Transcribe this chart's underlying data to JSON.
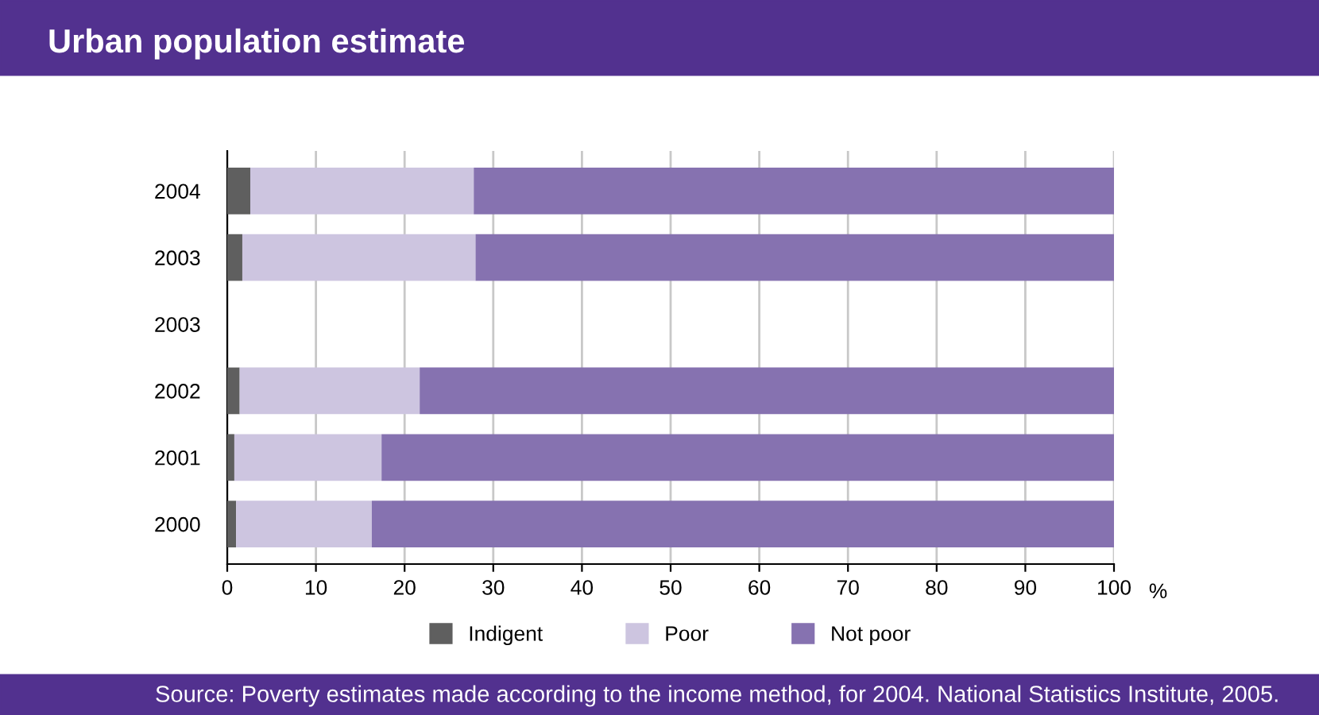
{
  "chart_data": {
    "type": "bar",
    "orientation": "horizontal",
    "stacked": true,
    "title": "Urban population estimate",
    "xlabel": "%",
    "categories": [
      "2004",
      "2003",
      "2003",
      "2002",
      "2001",
      "2000"
    ],
    "series": [
      {
        "name": "Indigent",
        "color": "#5f5f5f",
        "values": [
          2.6,
          1.7,
          null,
          1.4,
          0.8,
          1.0
        ]
      },
      {
        "name": "Poor",
        "color": "#cdc5e0",
        "values": [
          25.2,
          26.3,
          null,
          20.3,
          16.6,
          15.3
        ]
      },
      {
        "name": "Not poor",
        "color": "#8672b0",
        "values": [
          72.2,
          72.0,
          null,
          78.3,
          82.6,
          83.7
        ]
      }
    ],
    "xlim": [
      0,
      100
    ],
    "xticks": [
      0,
      10,
      20,
      30,
      40,
      50,
      60,
      70,
      80,
      90,
      100
    ],
    "grid": "x",
    "legend": "bottom",
    "annotations": [
      "Source: Poverty estimates made according to the income method, for 2004. National Statistics Institute, 2005."
    ]
  }
}
